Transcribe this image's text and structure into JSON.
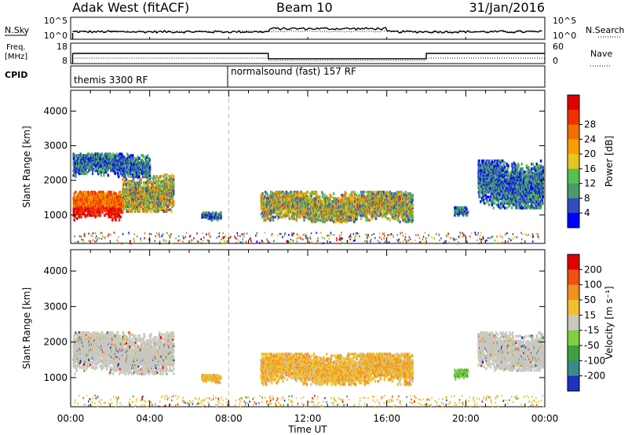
{
  "header": {
    "radar": "Adak West (fitACF)",
    "beam": "Beam 10",
    "date": "31/Jan/2016"
  },
  "noise_panel": {
    "left_label": "N.Sky",
    "right_label": "N.Search",
    "left_ticks": [
      "10^5",
      "10^0"
    ],
    "right_ticks": [
      "10^5",
      "10^0"
    ]
  },
  "freq_panel": {
    "left_label_line1": "Freq.",
    "left_label_line2": "[MHz]",
    "right_label": "Nave",
    "left_ticks": [
      "18",
      "8"
    ],
    "right_ticks": [
      "60",
      "0"
    ],
    "freq_line": [
      {
        "t": 0.0,
        "v": 13.0
      },
      {
        "t": 10.0,
        "v": 13.0
      },
      {
        "t": 10.0,
        "v": 10.4
      },
      {
        "t": 18.0,
        "v": 10.4
      },
      {
        "t": 18.0,
        "v": 13.0
      },
      {
        "t": 24.0,
        "v": 13.0
      }
    ],
    "freq_range": [
      8,
      18
    ]
  },
  "cpid_panel": {
    "label": "CPID",
    "modes": [
      {
        "start": 0.0,
        "name": "themis 3300 RF"
      },
      {
        "start": 8.0,
        "name": "normalsound (fast) 157 RF"
      }
    ]
  },
  "chart_data": [
    {
      "type": "heatmap",
      "name": "power",
      "ylabel": "Slant Range [km]",
      "xlabel": "Time UT",
      "x_ticks": [
        "00:00",
        "04:00",
        "08:00",
        "12:00",
        "16:00",
        "20:00",
        "00:00"
      ],
      "x_range_hours": [
        0,
        24
      ],
      "y_ticks": [
        1000,
        2000,
        3000,
        4000
      ],
      "ylim": [
        180,
        4600
      ],
      "colorbar": {
        "label": "Power [dB]",
        "tick_labels": [
          "4",
          "8",
          "12",
          "16",
          "20",
          "24",
          "28"
        ],
        "colors": [
          "#0000ff",
          "#2f4fc0",
          "#4a9a6a",
          "#56c050",
          "#e6c620",
          "#f5a000",
          "#f07000",
          "#f03000",
          "#e00000"
        ]
      },
      "echo_regions": [
        {
          "t0": 0.1,
          "t1": 2.6,
          "r0": 850,
          "r1": 1700,
          "level": "high"
        },
        {
          "t0": 2.6,
          "t1": 5.2,
          "r0": 1100,
          "r1": 2200,
          "level": "mid"
        },
        {
          "t0": 0.1,
          "t1": 4.0,
          "r0": 2100,
          "r1": 2800,
          "level": "low"
        },
        {
          "t0": 6.6,
          "t1": 7.6,
          "r0": 850,
          "r1": 1100,
          "level": "low"
        },
        {
          "t0": 9.6,
          "t1": 17.3,
          "r0": 800,
          "r1": 1700,
          "level": "mid"
        },
        {
          "t0": 19.4,
          "t1": 20.1,
          "r0": 950,
          "r1": 1250,
          "level": "low"
        },
        {
          "t0": 20.6,
          "t1": 23.9,
          "r0": 1200,
          "r1": 2600,
          "level": "low"
        }
      ]
    },
    {
      "type": "heatmap",
      "name": "velocity",
      "ylabel": "Slant Range [km]",
      "xlabel": "Time UT",
      "x_ticks": [
        "00:00",
        "04:00",
        "08:00",
        "12:00",
        "16:00",
        "20:00",
        "00:00"
      ],
      "x_range_hours": [
        0,
        24
      ],
      "y_ticks": [
        1000,
        2000,
        3000,
        4000
      ],
      "ylim": [
        180,
        4600
      ],
      "colorbar": {
        "label": "Velocity [m s⁻¹]",
        "tick_labels": [
          "200",
          "100",
          "50",
          "15",
          "-15",
          "-50",
          "-100",
          "-200"
        ],
        "colors": [
          "#2030c0",
          "#3a8a8a",
          "#40a040",
          "#80d040",
          "#c8c8c0",
          "#f0c030",
          "#f09020",
          "#f05010",
          "#e00000"
        ]
      },
      "echo_regions": [
        {
          "t0": 0.1,
          "t1": 5.2,
          "r0": 1100,
          "r1": 2300,
          "level": "gray"
        },
        {
          "t0": 6.6,
          "t1": 7.6,
          "r0": 850,
          "r1": 1100,
          "level": "orange"
        },
        {
          "t0": 9.6,
          "t1": 17.3,
          "r0": 800,
          "r1": 1700,
          "level": "orange"
        },
        {
          "t0": 19.4,
          "t1": 20.1,
          "r0": 950,
          "r1": 1250,
          "level": "green"
        },
        {
          "t0": 20.6,
          "t1": 23.9,
          "r0": 1200,
          "r1": 2300,
          "level": "gray"
        }
      ]
    }
  ]
}
